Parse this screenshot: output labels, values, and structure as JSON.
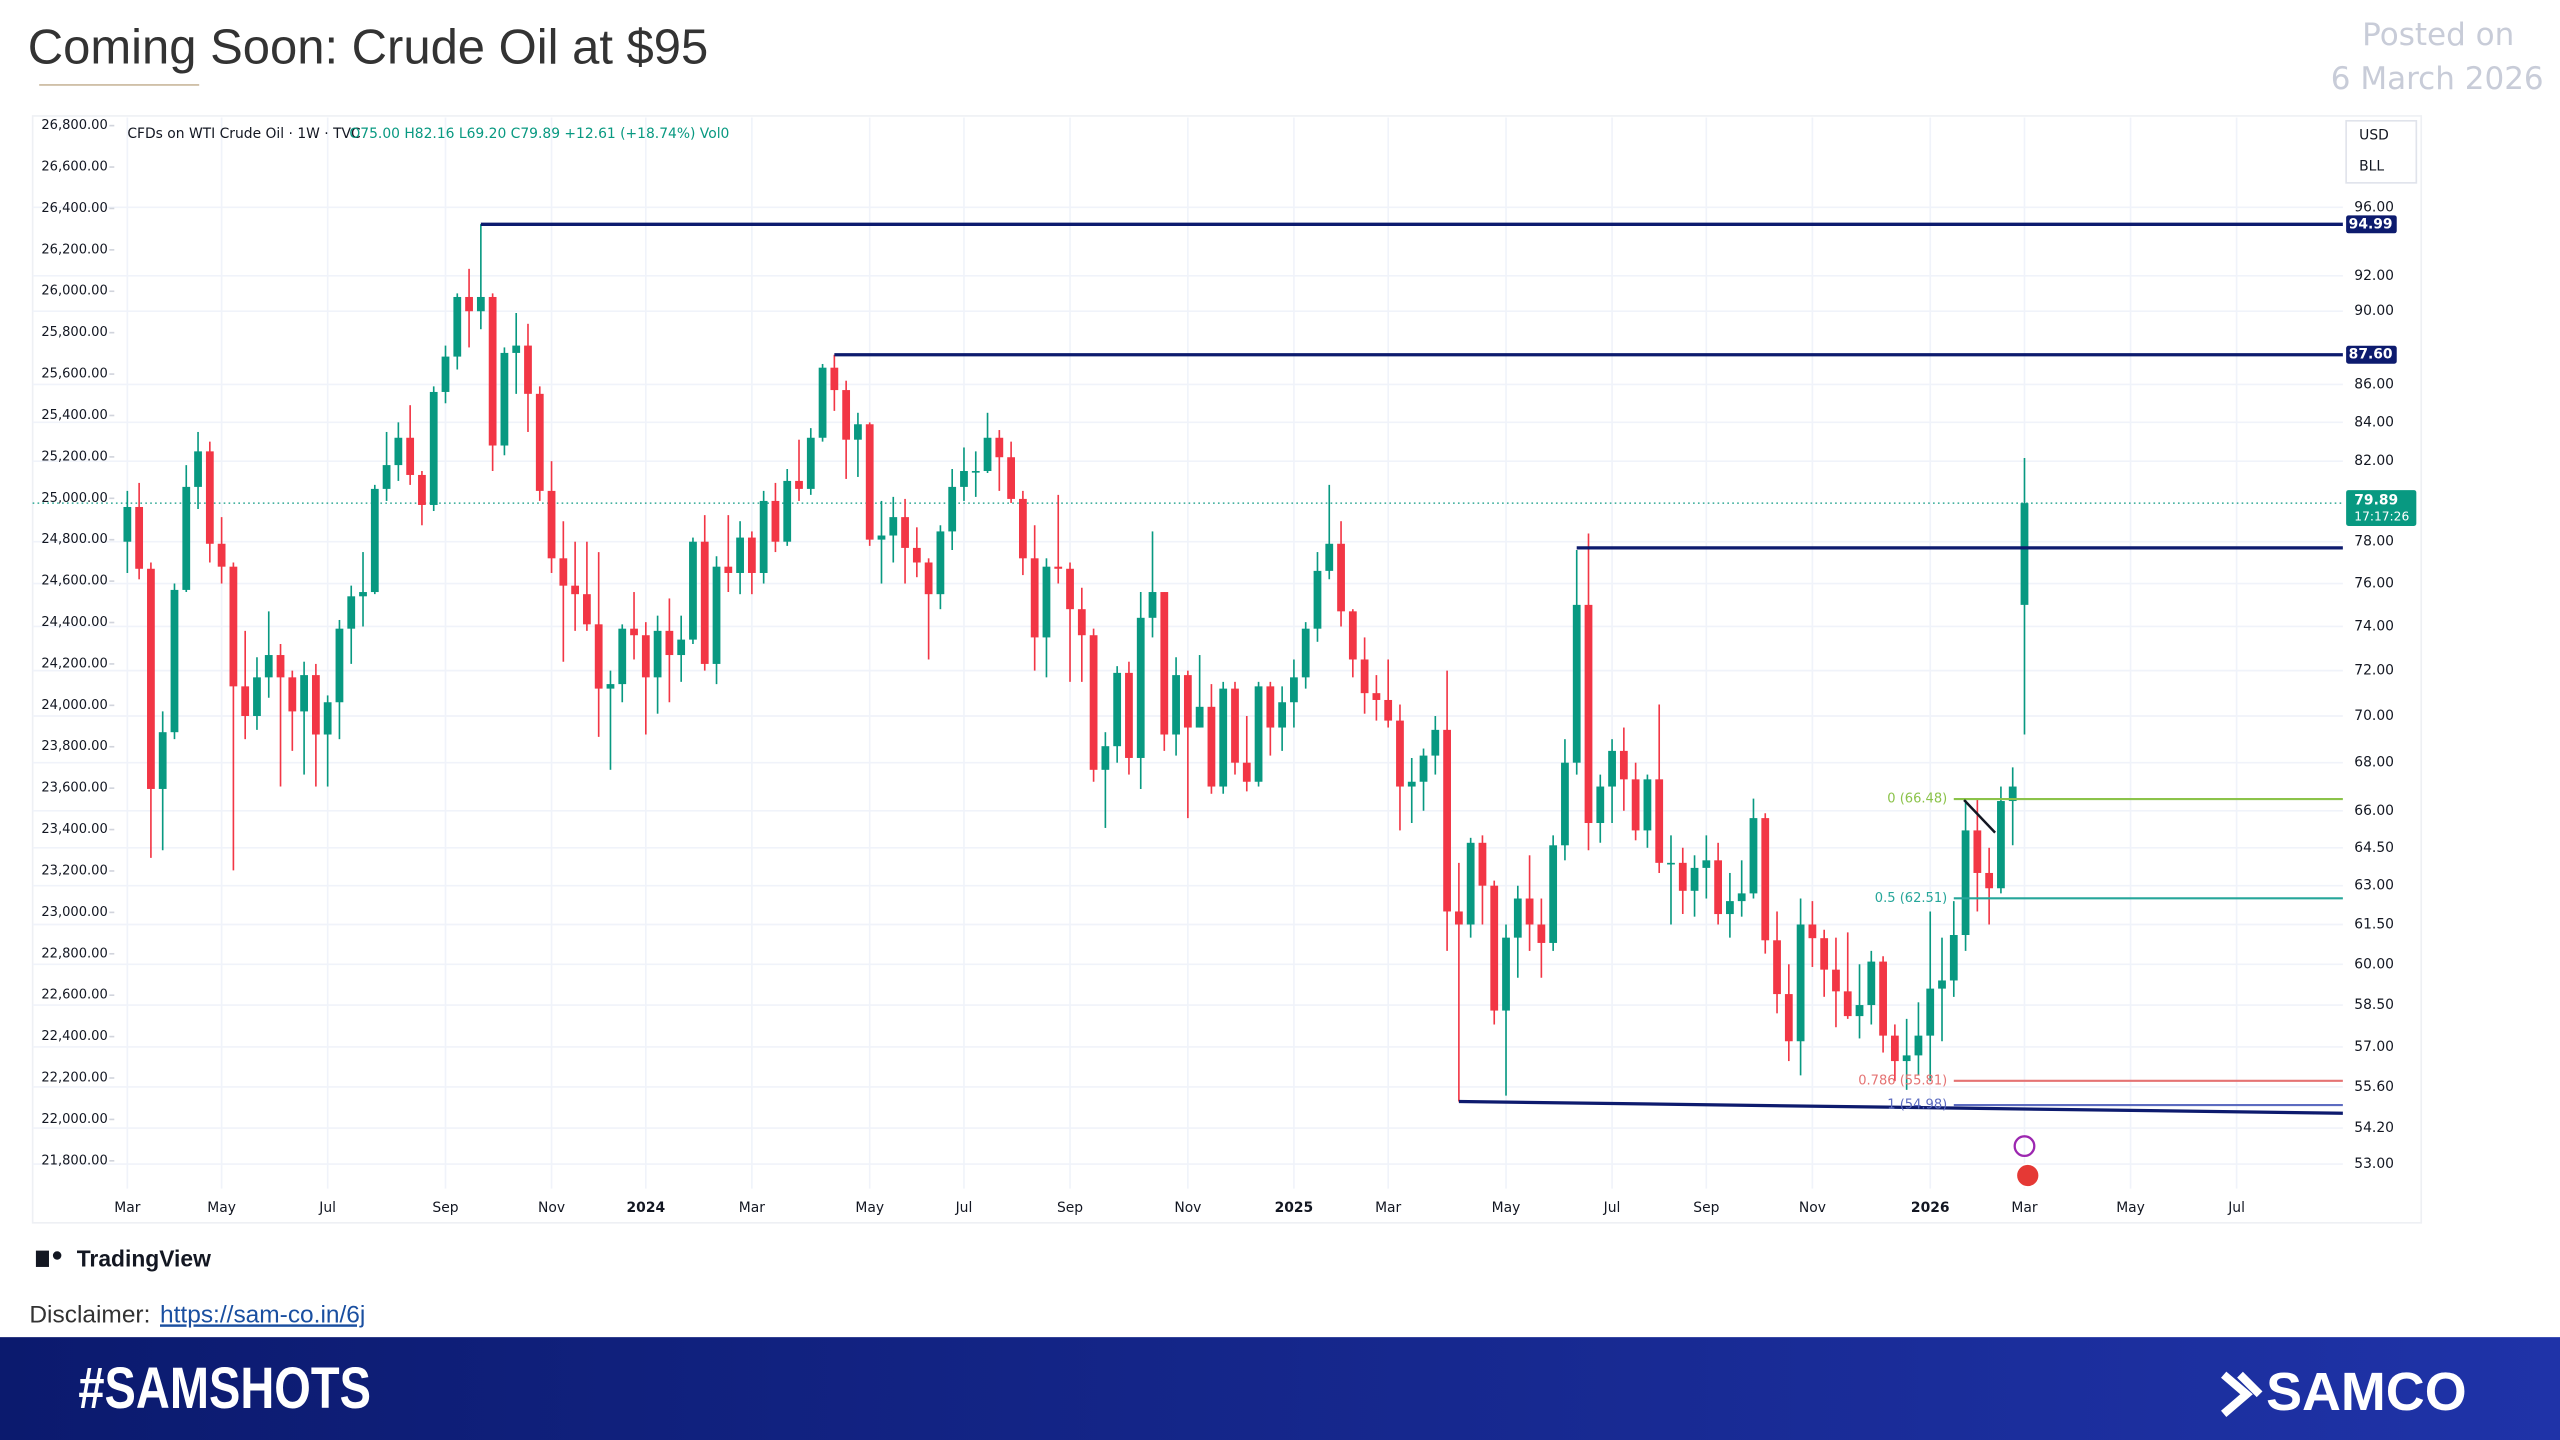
{
  "header": {
    "title": "Coming Soon: Crude Oil at $95",
    "posted_label": "Posted on",
    "posted_date": "6 March 2026"
  },
  "brand": "TradingView",
  "disclaimer": {
    "label": "Disclaimer:",
    "link": "https://sam-co.in/6j"
  },
  "footer": {
    "hashtag": "#SAMSHOTS",
    "logo": "SAMCO"
  },
  "chart_data": {
    "type": "candlestick",
    "title": "CFDs on WTI Crude Oil · 1W · TVC",
    "readout": "O75.00 H82.16 L69.20 C79.89 +12.61 (+18.74%) Vol0",
    "currency": "USD",
    "unit": "BLL",
    "log_scale": true,
    "grid": true,
    "up_color": "#089981",
    "down_color": "#f23645",
    "categories": [
      "Mar",
      null,
      null,
      null,
      null,
      null,
      null,
      null,
      "May",
      null,
      null,
      null,
      null,
      null,
      null,
      null,
      null,
      "Jul",
      null,
      null,
      null,
      null,
      null,
      null,
      null,
      null,
      null,
      "Sep",
      null,
      null,
      null,
      null,
      null,
      null,
      null,
      null,
      "Nov",
      null,
      null,
      null,
      null,
      null,
      null,
      null,
      "2024",
      null,
      null,
      null,
      null,
      null,
      null,
      null,
      null,
      "Mar",
      null,
      null,
      null,
      null,
      null,
      null,
      null,
      null,
      null,
      "May",
      null,
      null,
      null,
      null,
      null,
      null,
      null,
      "Jul",
      null,
      null,
      null,
      null,
      null,
      null,
      null,
      null,
      "Sep",
      null,
      null,
      null,
      null,
      null,
      null,
      null,
      null,
      null,
      "Nov",
      null,
      null,
      null,
      null,
      null,
      null,
      null,
      null,
      "2025",
      null,
      null,
      null,
      null,
      null,
      null,
      null,
      "Mar",
      null,
      null,
      null,
      null,
      null,
      null,
      null,
      null,
      null,
      "May",
      null,
      null,
      null,
      null,
      null,
      null,
      null,
      null,
      "Jul",
      null,
      null,
      null,
      null,
      null,
      null,
      null,
      "Sep",
      null,
      null,
      null,
      null,
      null,
      null,
      null,
      null,
      "Nov",
      null,
      null,
      null,
      null,
      null,
      null,
      null,
      null,
      null,
      "2026",
      null,
      null,
      null,
      null,
      null,
      null,
      null,
      "Mar",
      null,
      null,
      null,
      null,
      null,
      null,
      null,
      null,
      "May",
      null,
      null,
      null,
      null,
      null,
      null,
      null,
      null,
      "Jul",
      null,
      null,
      null,
      null,
      null,
      null,
      null,
      null,
      null
    ],
    "open": [
      78.0,
      79.7,
      76.7,
      66.9,
      69.3,
      75.7,
      80.7,
      82.5,
      77.9,
      76.8,
      71.3,
      70.0,
      71.7,
      72.7,
      71.7,
      70.2,
      71.8,
      69.2,
      70.6,
      73.9,
      75.4,
      75.6,
      80.6,
      81.8,
      83.2,
      81.3,
      79.8,
      85.6,
      87.5,
      90.8,
      90.0,
      90.8,
      82.8,
      87.7,
      88.1,
      85.5,
      80.5,
      77.2,
      75.9,
      75.5,
      74.1,
      71.2,
      71.4,
      73.9,
      73.6,
      71.7,
      73.8,
      72.7,
      73.4,
      78.0,
      72.3,
      76.8,
      76.5,
      78.2,
      76.5,
      80.0,
      78.0,
      81.0,
      80.6,
      83.2,
      86.9,
      85.7,
      83.1,
      83.9,
      78.1,
      78.3,
      79.2,
      77.7,
      77.0,
      75.5,
      78.5,
      80.7,
      81.5,
      81.5,
      83.2,
      82.2,
      80.1,
      77.2,
      73.5,
      76.8,
      76.7,
      74.8,
      73.6,
      67.7,
      68.7,
      71.9,
      68.2,
      74.4,
      75.6,
      69.2,
      71.8,
      69.5,
      70.4,
      67.0,
      71.2,
      68.0,
      67.2,
      71.3,
      69.5,
      70.6,
      71.7,
      73.9,
      76.6,
      77.9,
      74.7,
      72.5,
      71.0,
      70.7,
      69.8,
      67.0,
      67.2,
      68.3,
      69.4,
      62.0,
      61.5,
      64.7,
      63.0,
      58.3,
      61.0,
      62.5,
      61.5,
      60.8,
      64.6,
      68.0,
      75.0,
      65.5,
      67.0,
      68.5,
      67.3,
      65.2,
      67.3,
      63.9,
      63.9,
      62.8,
      63.7,
      64.0,
      61.9,
      62.4,
      62.7,
      65.7,
      60.9,
      58.9,
      57.2,
      61.5,
      60.98,
      59.8,
      59.0,
      58.1,
      58.5,
      60.1,
      57.4,
      56.5,
      56.7,
      57.4,
      59.1,
      59.4,
      61.1,
      65.2,
      63.5,
      62.9,
      66.4,
      75.0,
      null,
      null,
      null,
      null,
      null,
      null,
      null,
      null,
      null,
      null,
      null,
      null,
      null,
      null,
      null,
      null,
      null,
      null,
      null,
      null,
      null,
      null,
      null,
      null,
      null,
      null,
      null
    ],
    "high": [
      80.5,
      80.9,
      77.0,
      70.2,
      76.0,
      81.8,
      83.5,
      83.0,
      79.2,
      77.0,
      73.8,
      72.6,
      74.7,
      73.2,
      72.0,
      72.4,
      72.3,
      70.9,
      74.3,
      75.9,
      77.5,
      80.8,
      83.5,
      84.0,
      84.9,
      81.5,
      85.9,
      88.1,
      91.0,
      92.4,
      95.0,
      91.0,
      88.0,
      89.9,
      89.3,
      85.9,
      82.0,
      79.0,
      78.0,
      78.0,
      77.5,
      72.0,
      74.1,
      75.6,
      74.2,
      74.5,
      75.3,
      74.5,
      78.2,
      79.3,
      77.3,
      79.3,
      79.0,
      78.5,
      80.5,
      80.9,
      81.6,
      83.1,
      83.7,
      87.1,
      87.6,
      86.2,
      84.5,
      84.0,
      80.0,
      80.2,
      80.1,
      78.7,
      77.2,
      78.8,
      81.6,
      82.7,
      82.5,
      84.5,
      83.6,
      83.0,
      80.5,
      78.8,
      77.2,
      80.3,
      77.0,
      75.8,
      73.9,
      69.3,
      72.2,
      72.4,
      75.6,
      78.5,
      75.6,
      72.6,
      72.0,
      72.7,
      71.4,
      71.5,
      71.5,
      70.0,
      71.5,
      71.5,
      71.3,
      72.5,
      74.2,
      77.5,
      80.8,
      79.0,
      74.8,
      73.5,
      71.8,
      72.5,
      70.5,
      68.2,
      68.6,
      70.0,
      72.0,
      63.9,
      64.9,
      65.0,
      63.2,
      61.5,
      63.0,
      64.2,
      62.5,
      65.0,
      69.0,
      77.6,
      78.4,
      67.5,
      69.0,
      69.5,
      68.0,
      67.5,
      70.5,
      65.0,
      64.5,
      64.2,
      65.0,
      64.7,
      63.5,
      64.0,
      66.5,
      65.9,
      62.0,
      60.0,
      62.5,
      62.4,
      61.3,
      61.0,
      61.2,
      60.0,
      60.5,
      60.3,
      57.8,
      58.0,
      58.6,
      62.0,
      61.0,
      62.4,
      66.5,
      66.48,
      64.5,
      67.0,
      67.8,
      82.16,
      null,
      null,
      null,
      null,
      null,
      null,
      null,
      null,
      null,
      null,
      null,
      null,
      null,
      null,
      null,
      null,
      null,
      null,
      null,
      null,
      null,
      null,
      null,
      null,
      null,
      null,
      null
    ],
    "low": [
      76.5,
      76.2,
      64.1,
      64.4,
      69.0,
      75.6,
      79.6,
      77.0,
      76.0,
      63.6,
      69.0,
      69.4,
      70.8,
      67.0,
      68.5,
      67.5,
      67.0,
      67.0,
      69.0,
      72.3,
      74.0,
      75.5,
      80.0,
      81.0,
      80.8,
      78.8,
      79.5,
      85.0,
      86.8,
      88.0,
      89.0,
      81.5,
      82.3,
      85.5,
      83.5,
      80.0,
      76.5,
      72.4,
      73.8,
      73.8,
      69.1,
      67.7,
      70.6,
      72.5,
      69.2,
      70.1,
      70.6,
      71.5,
      73.2,
      72.0,
      71.4,
      75.6,
      75.5,
      75.5,
      76.0,
      77.5,
      77.8,
      80.0,
      80.3,
      83.0,
      84.6,
      81.1,
      81.2,
      77.8,
      76.0,
      77.0,
      76.0,
      76.3,
      72.5,
      74.8,
      77.6,
      80.0,
      80.2,
      81.4,
      80.5,
      79.9,
      76.4,
      72.0,
      71.7,
      76.0,
      71.5,
      71.5,
      67.2,
      65.3,
      68.0,
      67.5,
      66.9,
      73.5,
      68.5,
      68.3,
      65.7,
      69.5,
      66.7,
      66.7,
      67.5,
      66.8,
      67.0,
      68.3,
      68.5,
      69.5,
      71.2,
      73.3,
      76.2,
      74.0,
      71.7,
      70.1,
      69.8,
      69.5,
      65.2,
      65.5,
      66.0,
      67.5,
      60.5,
      55.1,
      61.0,
      61.5,
      57.8,
      55.3,
      59.5,
      60.5,
      59.5,
      60.5,
      64.0,
      67.5,
      64.4,
      64.7,
      65.5,
      66.0,
      64.8,
      64.5,
      63.5,
      61.5,
      61.9,
      61.8,
      62.5,
      61.5,
      61.0,
      61.8,
      62.5,
      60.4,
      58.2,
      56.5,
      56.0,
      59.9,
      58.8,
      57.7,
      58.0,
      57.3,
      57.8,
      56.8,
      55.8,
      55.5,
      56.0,
      55.8,
      57.2,
      58.8,
      60.5,
      62.0,
      61.5,
      62.7,
      64.6,
      69.2,
      null,
      null,
      null,
      null,
      null,
      null,
      null,
      null,
      null,
      null,
      null,
      null,
      null,
      null,
      null,
      null,
      null,
      null,
      null,
      null,
      null,
      null,
      null,
      null,
      null,
      null,
      null
    ],
    "close": [
      79.7,
      76.7,
      66.9,
      69.3,
      75.7,
      80.7,
      82.5,
      77.9,
      76.8,
      71.3,
      70.0,
      71.7,
      72.7,
      71.7,
      70.2,
      71.8,
      69.2,
      70.6,
      73.9,
      75.4,
      75.6,
      80.6,
      81.8,
      83.2,
      81.3,
      79.8,
      85.6,
      87.5,
      90.8,
      90.0,
      90.8,
      82.8,
      87.7,
      88.1,
      85.5,
      80.5,
      77.2,
      75.9,
      75.5,
      74.1,
      71.2,
      71.4,
      73.9,
      73.6,
      71.7,
      73.8,
      72.7,
      73.4,
      78.0,
      72.3,
      76.8,
      76.5,
      78.2,
      76.5,
      80.0,
      78.0,
      81.0,
      80.6,
      83.2,
      86.9,
      85.7,
      83.1,
      83.9,
      78.1,
      78.3,
      79.2,
      77.7,
      77.0,
      75.5,
      78.5,
      80.7,
      81.5,
      81.5,
      83.2,
      82.2,
      80.1,
      77.2,
      73.5,
      76.8,
      76.7,
      74.8,
      73.6,
      67.7,
      68.7,
      71.9,
      68.2,
      74.4,
      75.6,
      69.2,
      71.8,
      69.5,
      70.4,
      67.0,
      71.2,
      68.0,
      67.2,
      71.3,
      69.5,
      70.6,
      71.7,
      73.9,
      76.6,
      77.9,
      74.7,
      72.5,
      71.0,
      70.7,
      69.8,
      67.0,
      67.2,
      68.3,
      69.4,
      62.0,
      61.5,
      64.7,
      63.0,
      58.3,
      61.0,
      62.5,
      61.5,
      60.8,
      64.6,
      68.0,
      75.0,
      65.5,
      67.0,
      68.5,
      67.3,
      65.2,
      67.3,
      63.9,
      63.9,
      62.8,
      63.7,
      64.0,
      61.9,
      62.4,
      62.7,
      65.7,
      60.9,
      58.9,
      57.2,
      61.5,
      60.98,
      59.8,
      59.0,
      58.1,
      58.5,
      60.1,
      57.4,
      56.5,
      56.7,
      57.4,
      59.1,
      59.4,
      61.1,
      65.2,
      63.5,
      62.9,
      66.4,
      67.0,
      79.89,
      null,
      null,
      null,
      null,
      null,
      null,
      null,
      null,
      null,
      null,
      null,
      null,
      null,
      null,
      null,
      null,
      null,
      null,
      null,
      null,
      null,
      null,
      null,
      null,
      null,
      null,
      null
    ],
    "ylim": [
      52.2,
      101.5
    ],
    "yticks": [
      {
        "value": 96,
        "label": "96.00"
      },
      {
        "value": 92,
        "label": "92.00"
      },
      {
        "value": 90,
        "label": "90.00"
      },
      {
        "value": 86,
        "label": "86.00"
      },
      {
        "value": 84,
        "label": "84.00"
      },
      {
        "value": 82,
        "label": "82.00"
      },
      {
        "value": 78,
        "label": "78.00"
      },
      {
        "value": 76,
        "label": "76.00"
      },
      {
        "value": 74,
        "label": "74.00"
      },
      {
        "value": 72,
        "label": "72.00"
      },
      {
        "value": 70,
        "label": "70.00"
      },
      {
        "value": 68,
        "label": "68.00"
      },
      {
        "value": 66,
        "label": "66.00"
      },
      {
        "value": 64.5,
        "label": "64.50"
      },
      {
        "value": 63,
        "label": "63.00"
      },
      {
        "value": 61.5,
        "label": "61.50"
      },
      {
        "value": 60,
        "label": "60.00"
      },
      {
        "value": 58.5,
        "label": "58.50"
      },
      {
        "value": 57,
        "label": "57.00"
      },
      {
        "value": 55.6,
        "label": "55.60"
      },
      {
        "value": 54.2,
        "label": "54.20"
      },
      {
        "value": 53,
        "label": "53.00"
      }
    ],
    "y2lim": [
      21666,
      26839
    ],
    "y2ticks": [
      {
        "value": 26800,
        "label": "26,800.00"
      },
      {
        "value": 26600,
        "label": "26,600.00"
      },
      {
        "value": 26400,
        "label": "26,400.00"
      },
      {
        "value": 26200,
        "label": "26,200.00"
      },
      {
        "value": 26000,
        "label": "26,000.00"
      },
      {
        "value": 25800,
        "label": "25,800.00"
      },
      {
        "value": 25600,
        "label": "25,600.00"
      },
      {
        "value": 25400,
        "label": "25,400.00"
      },
      {
        "value": 25200,
        "label": "25,200.00"
      },
      {
        "value": 25000,
        "label": "25,000.00"
      },
      {
        "value": 24800,
        "label": "24,800.00"
      },
      {
        "value": 24600,
        "label": "24,600.00"
      },
      {
        "value": 24400,
        "label": "24,400.00"
      },
      {
        "value": 24200,
        "label": "24,200.00"
      },
      {
        "value": 24000,
        "label": "24,000.00"
      },
      {
        "value": 23800,
        "label": "23,800.00"
      },
      {
        "value": 23600,
        "label": "23,600.00"
      },
      {
        "value": 23400,
        "label": "23,400.00"
      },
      {
        "value": 23200,
        "label": "23,200.00"
      },
      {
        "value": 23000,
        "label": "23,000.00"
      },
      {
        "value": 22800,
        "label": "22,800.00"
      },
      {
        "value": 22600,
        "label": "22,600.00"
      },
      {
        "value": 22400,
        "label": "22,400.00"
      },
      {
        "value": 22200,
        "label": "22,200.00"
      },
      {
        "value": 22000,
        "label": "22,000.00"
      },
      {
        "value": 21800,
        "label": "21,800.00"
      }
    ],
    "labeled_levels": [
      94.99,
      {
        "value": 87.6,
        "label": "87.60"
      }
    ],
    "levels": [
      77.7
    ],
    "support_line": [
      55.1,
      54.7
    ],
    "fib_levels": [
      {
        "value": 66.48,
        "label": "0 (66.48)",
        "color": "#8bc34a"
      },
      {
        "value": 62.51,
        "label": "0.5 (62.51)",
        "color": "#26a69a"
      },
      {
        "value": 55.81,
        "label": "0.786 (55.81)",
        "color": "#e57373"
      },
      {
        "value": 54.98,
        "label": "1 (54.98)",
        "color": "#5c6bc0"
      }
    ],
    "last_price": {
      "value": 79.89,
      "countdown": "17:17:26"
    }
  }
}
